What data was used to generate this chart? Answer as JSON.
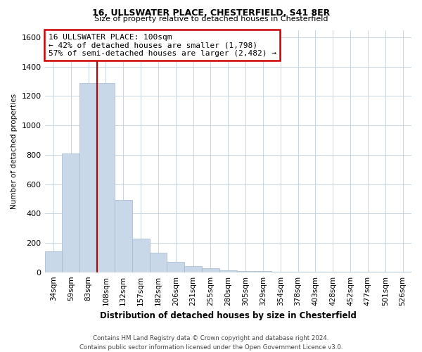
{
  "title1": "16, ULLSWATER PLACE, CHESTERFIELD, S41 8ER",
  "title2": "Size of property relative to detached houses in Chesterfield",
  "xlabel": "Distribution of detached houses by size in Chesterfield",
  "ylabel": "Number of detached properties",
  "footer": "Contains HM Land Registry data © Crown copyright and database right 2024.\nContains public sector information licensed under the Open Government Licence v3.0.",
  "categories": [
    "34sqm",
    "59sqm",
    "83sqm",
    "108sqm",
    "132sqm",
    "157sqm",
    "182sqm",
    "206sqm",
    "231sqm",
    "255sqm",
    "280sqm",
    "305sqm",
    "329sqm",
    "354sqm",
    "378sqm",
    "403sqm",
    "428sqm",
    "452sqm",
    "477sqm",
    "501sqm",
    "526sqm"
  ],
  "values": [
    140,
    810,
    1290,
    1290,
    490,
    230,
    135,
    70,
    40,
    25,
    15,
    10,
    8,
    5,
    5,
    5,
    5,
    3,
    2,
    2,
    2
  ],
  "bar_color": "#c8d8e8",
  "bar_edge_color": "#a0b8cc",
  "red_line_x": 2.5,
  "annotation_text": "16 ULLSWATER PLACE: 100sqm\n← 42% of detached houses are smaller (1,798)\n57% of semi-detached houses are larger (2,482) →",
  "annotation_box_color": "#ffffff",
  "annotation_box_edge": "#cc0000",
  "ylim": [
    0,
    1650
  ],
  "yticks": [
    0,
    200,
    400,
    600,
    800,
    1000,
    1200,
    1400,
    1600
  ],
  "background_color": "#ffffff",
  "grid_color": "#c8d4de"
}
